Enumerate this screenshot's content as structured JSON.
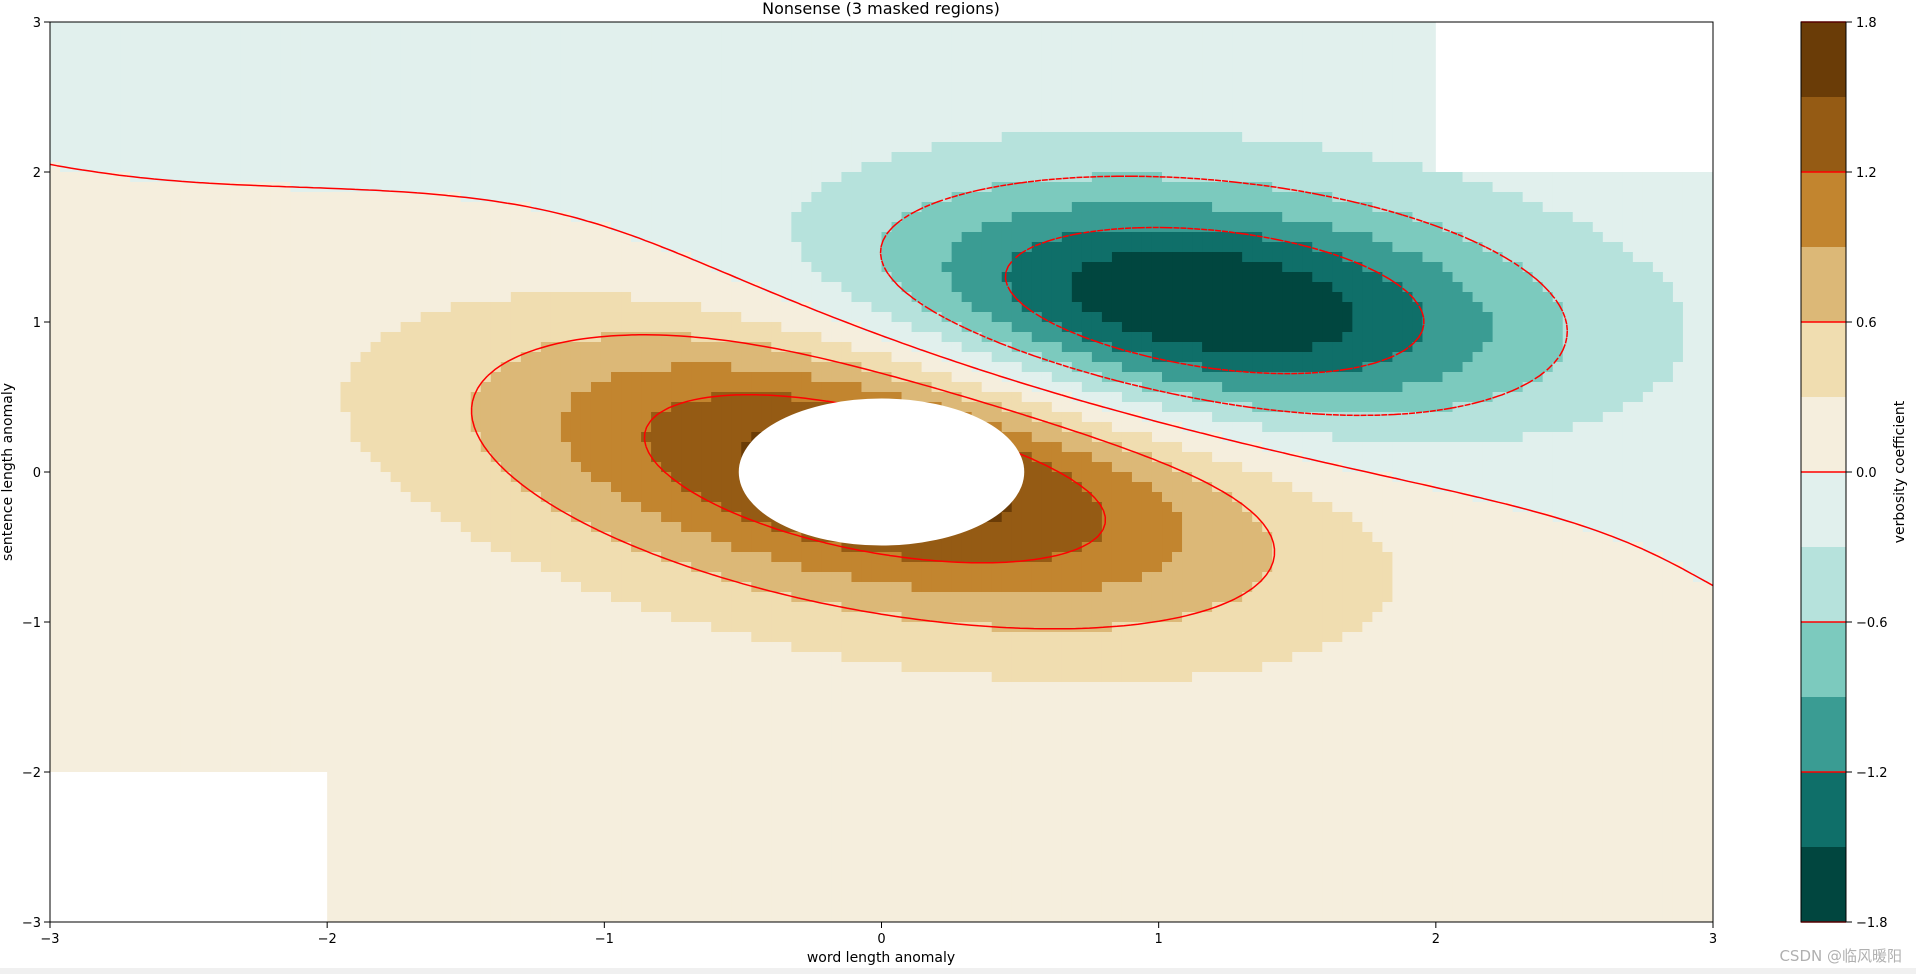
{
  "chart_data": {
    "type": "contour",
    "title": "Nonsense (3 masked regions)",
    "xlabel": "word length anomaly",
    "ylabel": "sentence length anomaly",
    "xlim": [
      -3,
      3
    ],
    "ylim": [
      -3,
      3
    ],
    "x_ticks": [
      "−3",
      "−2",
      "−1",
      "0",
      "1",
      "2",
      "3"
    ],
    "y_ticks": [
      "−3",
      "−2",
      "−1",
      "0",
      "1",
      "2",
      "3"
    ],
    "grid": false,
    "surface": {
      "description_of_levels": "filled contours of Z = 2*(exp(-((x)^2/1.25 + (y)^2)) ... computed field",
      "positive_peak": {
        "x": 0.0,
        "y": 0.0,
        "value": 1.6
      },
      "negative_peak": {
        "x": 1.2,
        "y": 1.1,
        "value": -1.7
      }
    },
    "fill_levels": [
      -1.8,
      -1.5,
      -1.2,
      -0.9,
      -0.6,
      -0.3,
      0.0,
      0.3,
      0.6,
      0.9,
      1.2,
      1.5,
      1.8
    ],
    "fill_colors": [
      "#01463f",
      "#0f6f69",
      "#3a9c93",
      "#7ccabe",
      "#b6e2dc",
      "#e1f0ed",
      "#f5eedd",
      "#f0ddb0",
      "#dcb877",
      "#c2852f",
      "#955b14",
      "#6a3c07"
    ],
    "line_levels": [
      -1.2,
      -0.6,
      0.0,
      0.6,
      1.2
    ],
    "line_color": "#ff0000",
    "masked_regions": [
      {
        "x": [
          -3,
          -2
        ],
        "y": [
          -3,
          -2
        ]
      },
      {
        "x": [
          2,
          3
        ],
        "y": [
          2,
          3
        ]
      },
      {
        "shape": "circle",
        "center": [
          0,
          0
        ],
        "radius": 0.5
      }
    ],
    "colorbar": {
      "label": "verbosity coefficient",
      "ticks": [
        "1.8",
        "1.2",
        "0.6",
        "0.0",
        "−0.6",
        "−1.2",
        "−1.8"
      ],
      "tick_values": [
        1.8,
        1.2,
        0.6,
        0.0,
        -0.6,
        -1.2,
        -1.8
      ]
    }
  },
  "watermark": "CSDN @临风暖阳"
}
